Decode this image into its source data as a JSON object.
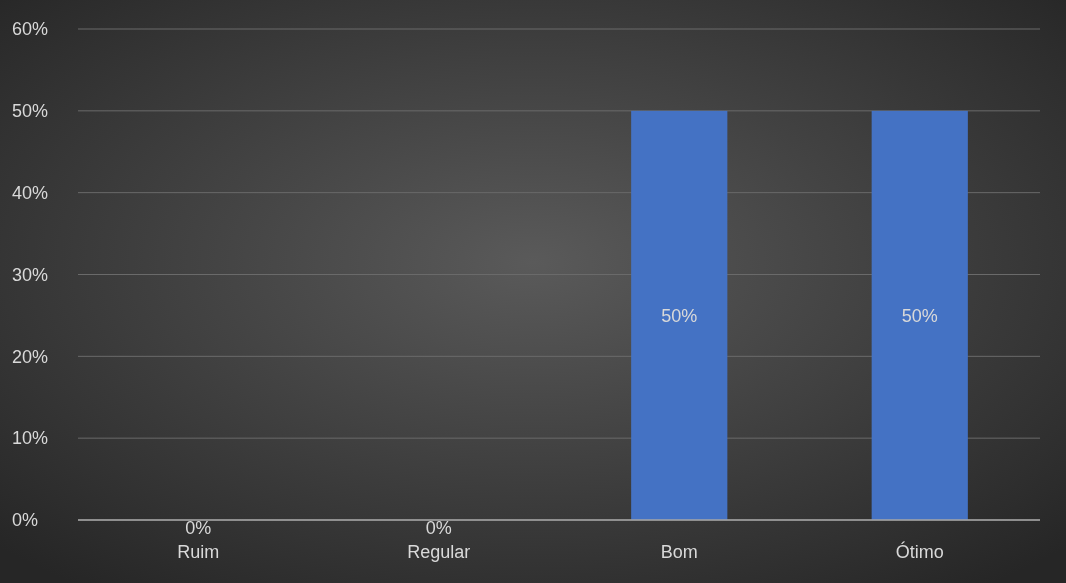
{
  "chart_data": {
    "type": "bar",
    "categories": [
      "Ruim",
      "Regular",
      "Bom",
      "Ótimo"
    ],
    "values": [
      0,
      0,
      50,
      50
    ],
    "value_labels": [
      "0%",
      "0%",
      "50%",
      "50%"
    ],
    "color": "#4472c4",
    "ylim": [
      0,
      60
    ],
    "yticks": [
      {
        "value": 0,
        "label": "0%"
      },
      {
        "value": 10,
        "label": "10%"
      },
      {
        "value": 20,
        "label": "20%"
      },
      {
        "value": 30,
        "label": "30%"
      },
      {
        "value": 40,
        "label": "40%"
      },
      {
        "value": 50,
        "label": "50%"
      },
      {
        "value": 60,
        "label": "60%"
      }
    ],
    "grid": "y"
  }
}
